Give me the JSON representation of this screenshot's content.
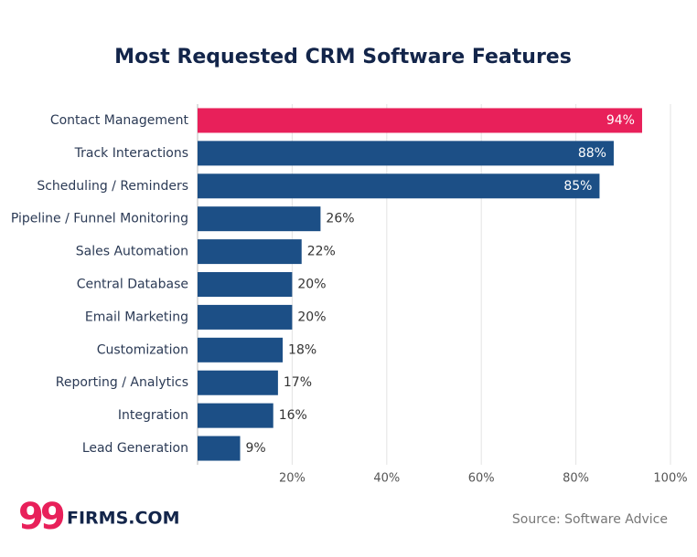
{
  "chart_data": {
    "type": "bar",
    "orientation": "horizontal",
    "title": "Most Requested CRM Software Features",
    "categories": [
      "Contact Management",
      "Track Interactions",
      "Scheduling / Reminders",
      "Pipeline / Funnel Monitoring",
      "Sales Automation",
      "Central Database",
      "Email Marketing",
      "Customization",
      "Reporting / Analytics",
      "Integration",
      "Lead Generation"
    ],
    "values": [
      94,
      88,
      85,
      26,
      22,
      20,
      20,
      18,
      17,
      16,
      9
    ],
    "value_labels": [
      "94%",
      "88%",
      "85%",
      "26%",
      "22%",
      "20%",
      "20%",
      "18%",
      "17%",
      "16%",
      "9%"
    ],
    "colors": [
      "#e8205a",
      "#1c4f86",
      "#1c4f86",
      "#1c4f86",
      "#1c4f86",
      "#1c4f86",
      "#1c4f86",
      "#1c4f86",
      "#1c4f86",
      "#1c4f86",
      "#1c4f86"
    ],
    "xlim": [
      0,
      100
    ],
    "xticks": [
      {
        "value": 20,
        "label": "20%"
      },
      {
        "value": 40,
        "label": "40%"
      },
      {
        "value": 60,
        "label": "60%"
      },
      {
        "value": 80,
        "label": "80%"
      },
      {
        "value": 100,
        "label": "100%"
      }
    ],
    "grid": true
  },
  "source": "Source: Software Advice",
  "logo": {
    "mark": "99",
    "text": "FIRMS.COM"
  }
}
